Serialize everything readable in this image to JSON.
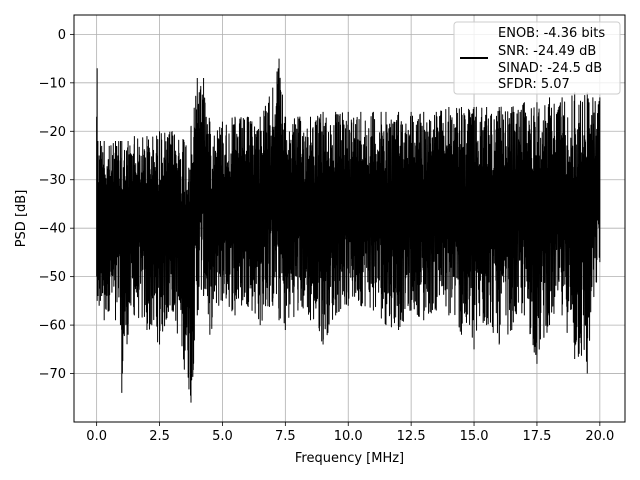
{
  "chart_data": {
    "type": "line",
    "xlabel": "Frequency [MHz]",
    "ylabel": "PSD [dB]",
    "xlim": [
      -0.9,
      21.0
    ],
    "ylim": [
      -80,
      4
    ],
    "xticks": [
      0.0,
      2.5,
      5.0,
      7.5,
      10.0,
      12.5,
      15.0,
      17.5,
      20.0
    ],
    "xtick_labels": [
      "0.0",
      "2.5",
      "5.0",
      "7.5",
      "10.0",
      "12.5",
      "15.0",
      "17.5",
      "20.0"
    ],
    "yticks": [
      0,
      -10,
      -20,
      -30,
      -40,
      -50,
      -60,
      -70
    ],
    "ytick_labels": [
      "0",
      "−10",
      "−20",
      "−30",
      "−40",
      "−50",
      "−60",
      "−70"
    ],
    "grid": true,
    "legend_position": "top-right",
    "legend_lines": [
      "ENOB: -4.36 bits",
      "SNR: -24.49 dB",
      "SINAD: -24.5 dB",
      "SFDR: 5.07"
    ],
    "series": [
      {
        "color": "#000000",
        "x": [
          0.0,
          0.02,
          0.05,
          0.1,
          0.15,
          0.2,
          0.3,
          0.5,
          0.75,
          0.95,
          1.0,
          1.25,
          1.5,
          2.0,
          2.5,
          3.0,
          3.75,
          4.0,
          4.25,
          4.5,
          5.0,
          5.5,
          6.0,
          6.5,
          7.0,
          7.25,
          7.5,
          8.0,
          8.5,
          9.0,
          9.5,
          10.0,
          10.5,
          11.0,
          11.5,
          12.0,
          12.5,
          13.0,
          13.5,
          14.0,
          14.5,
          15.0,
          15.5,
          16.0,
          16.5,
          17.0,
          17.5,
          18.0,
          18.5,
          19.0,
          19.5,
          20.0
        ],
        "upper": [
          -17,
          -7,
          -22,
          -25,
          -22,
          -23,
          -22,
          -23,
          -22,
          -22,
          -22,
          -22,
          -21,
          -21,
          -20,
          -20,
          -19,
          -9,
          -9,
          -18,
          -18,
          -17,
          -17,
          -17,
          -11,
          -5,
          -17,
          -17,
          -17,
          -16,
          -16,
          -16,
          -16,
          -16,
          -16,
          -16,
          -16,
          -16,
          -16,
          -15,
          -15,
          -15,
          -15,
          -15,
          -15,
          -14,
          -14,
          -13,
          -13,
          -12,
          -12,
          -13
        ],
        "lower": [
          -50,
          -55,
          -54,
          -56,
          -55,
          -54,
          -59,
          -57,
          -59,
          -60,
          -74,
          -62,
          -58,
          -61,
          -64,
          -57,
          -76,
          -58,
          -54,
          -62,
          -55,
          -58,
          -56,
          -60,
          -56,
          -59,
          -61,
          -57,
          -59,
          -64,
          -58,
          -56,
          -56,
          -57,
          -60,
          -61,
          -57,
          -59,
          -57,
          -58,
          -62,
          -65,
          -60,
          -64,
          -61,
          -58,
          -68,
          -60,
          -58,
          -67,
          -70,
          -47
        ]
      }
    ]
  }
}
